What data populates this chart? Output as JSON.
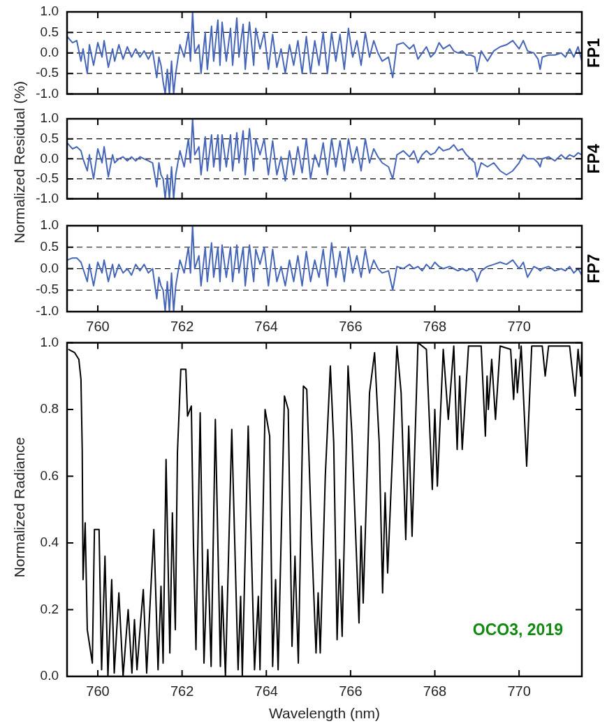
{
  "chart_data": [
    {
      "type": "line",
      "annotations": [
        "FP1"
      ],
      "xlim": [
        759.27,
        771.49
      ],
      "ylim": [
        -1,
        1
      ],
      "xticks": [
        760,
        762,
        764,
        766,
        768,
        770
      ],
      "yticks": [
        {
          "value": -1,
          "label": "-1.0"
        },
        {
          "value": -0.5,
          "label": "-0.5"
        },
        {
          "value": 0,
          "label": "0.0"
        },
        {
          "value": 0.5,
          "label": "0.5"
        },
        {
          "value": 1,
          "label": "1.0"
        }
      ],
      "tick_labels": "y",
      "ref_lines": [
        {
          "axis": "y",
          "value": 0.5,
          "color": "#000000",
          "line_style": "dashed"
        },
        {
          "axis": "y",
          "value": 0,
          "color": "#000000",
          "line_style": "dashed"
        },
        {
          "axis": "y",
          "value": -0.5,
          "color": "#000000",
          "line_style": "dashed"
        }
      ],
      "x": [
        759.27,
        759.4,
        759.5,
        759.6,
        759.65,
        759.75,
        759.8,
        759.9,
        760.0,
        760.1,
        760.15,
        760.25,
        760.35,
        760.4,
        760.5,
        760.6,
        760.7,
        760.8,
        760.9,
        761.0,
        761.1,
        761.2,
        761.3,
        761.4,
        761.45,
        761.5,
        761.55,
        761.6,
        761.65,
        761.7,
        761.75,
        761.8,
        761.85,
        761.95,
        762.05,
        762.15,
        762.2,
        762.25,
        762.3,
        762.4,
        762.45,
        762.55,
        762.6,
        762.7,
        762.75,
        762.85,
        762.9,
        762.95,
        763.05,
        763.15,
        763.2,
        763.3,
        763.35,
        763.45,
        763.5,
        763.6,
        763.7,
        763.75,
        763.85,
        763.95,
        764.05,
        764.15,
        764.25,
        764.35,
        764.45,
        764.55,
        764.65,
        764.75,
        764.85,
        764.95,
        765.05,
        765.15,
        765.25,
        765.35,
        765.45,
        765.55,
        765.65,
        765.75,
        765.85,
        765.95,
        766.05,
        766.15,
        766.25,
        766.35,
        766.45,
        766.55,
        766.65,
        766.75,
        766.9,
        767.0,
        767.1,
        767.25,
        767.4,
        767.5,
        767.6,
        767.7,
        767.8,
        767.9,
        768.0,
        768.1,
        768.2,
        768.35,
        768.45,
        768.55,
        768.65,
        768.75,
        768.85,
        768.95,
        769.0,
        769.1,
        769.25,
        769.4,
        769.55,
        769.7,
        769.85,
        770.0,
        770.1,
        770.2,
        770.35,
        770.45,
        770.5,
        770.55,
        770.7,
        770.85,
        771.0,
        771.1,
        771.2,
        771.3,
        771.4,
        771.49
      ],
      "series": [
        {
          "color": "#4565b8",
          "values": [
            0.4,
            0.25,
            0.3,
            -0.2,
            0.1,
            -0.5,
            0.2,
            -0.3,
            0.25,
            -0.1,
            0.3,
            -0.35,
            0.1,
            -0.2,
            0.2,
            -0.15,
            0.15,
            -0.1,
            0.1,
            -0.1,
            0.05,
            -0.15,
            0.05,
            -0.6,
            -0.1,
            -0.3,
            -0.7,
            -1.0,
            -0.4,
            -1.0,
            -0.2,
            -1.0,
            -0.5,
            0.2,
            -0.1,
            0.5,
            -0.2,
            1.0,
            0.0,
            0.2,
            -0.5,
            0.5,
            -0.4,
            0.65,
            -0.2,
            0.8,
            -0.3,
            0.75,
            -0.2,
            0.6,
            -0.3,
            0.85,
            -0.1,
            0.7,
            -0.4,
            0.75,
            -0.3,
            0.6,
            0.1,
            0.5,
            -0.4,
            0.45,
            -0.35,
            0.1,
            -0.5,
            0.2,
            -0.3,
            0.3,
            -0.5,
            0.4,
            -0.5,
            0.3,
            -0.3,
            0.5,
            -0.5,
            0.5,
            -0.2,
            0.45,
            -0.4,
            0.6,
            -0.1,
            0.3,
            -0.3,
            0.5,
            -0.1,
            0.3,
            0.0,
            -0.2,
            -0.1,
            -0.6,
            0.2,
            0.25,
            0.1,
            0.2,
            -0.15,
            0.0,
            0.15,
            -0.1,
            0.0,
            0.25,
            0.1,
            0.2,
            0.05,
            0.0,
            0.05,
            -0.05,
            -0.05,
            -0.1,
            -0.45,
            0.05,
            -0.2,
            0.05,
            0.15,
            0.2,
            0.3,
            0.1,
            0.3,
            0.05,
            0.0,
            -0.15,
            -0.4,
            -0.1,
            -0.05,
            -0.05,
            0.0,
            -0.1,
            0.1,
            -0.1,
            0.15,
            -0.2
          ]
        }
      ]
    },
    {
      "type": "line",
      "annotations": [
        "FP4"
      ],
      "ylabel": "Normalized Residual (%)",
      "xlim": [
        759.27,
        771.49
      ],
      "ylim": [
        -1,
        1
      ],
      "xticks": [
        760,
        762,
        764,
        766,
        768,
        770
      ],
      "yticks": [
        {
          "value": -1,
          "label": "-1.0"
        },
        {
          "value": -0.5,
          "label": "-0.5"
        },
        {
          "value": 0,
          "label": "0.0"
        },
        {
          "value": 0.5,
          "label": "0.5"
        },
        {
          "value": 1,
          "label": "1.0"
        }
      ],
      "tick_labels": "y",
      "ref_lines": [
        {
          "axis": "y",
          "value": 0.5,
          "color": "#000000",
          "line_style": "dashed"
        },
        {
          "axis": "y",
          "value": 0,
          "color": "#000000",
          "line_style": "dashed"
        },
        {
          "axis": "y",
          "value": -0.5,
          "color": "#000000",
          "line_style": "dashed"
        }
      ],
      "x": [
        759.27,
        759.4,
        759.5,
        759.6,
        759.65,
        759.75,
        759.8,
        759.9,
        760.0,
        760.1,
        760.15,
        760.25,
        760.35,
        760.4,
        760.5,
        760.6,
        760.7,
        760.8,
        760.9,
        761.0,
        761.1,
        761.2,
        761.3,
        761.4,
        761.45,
        761.5,
        761.55,
        761.6,
        761.65,
        761.7,
        761.75,
        761.8,
        761.85,
        761.95,
        762.05,
        762.15,
        762.2,
        762.25,
        762.3,
        762.4,
        762.45,
        762.55,
        762.6,
        762.7,
        762.75,
        762.85,
        762.9,
        762.95,
        763.05,
        763.15,
        763.2,
        763.3,
        763.35,
        763.45,
        763.5,
        763.6,
        763.7,
        763.75,
        763.85,
        763.95,
        764.05,
        764.15,
        764.25,
        764.35,
        764.45,
        764.55,
        764.65,
        764.75,
        764.85,
        764.95,
        765.05,
        765.15,
        765.25,
        765.35,
        765.45,
        765.55,
        765.65,
        765.75,
        765.85,
        765.95,
        766.05,
        766.15,
        766.25,
        766.35,
        766.45,
        766.55,
        766.65,
        766.75,
        766.9,
        767.0,
        767.1,
        767.25,
        767.4,
        767.5,
        767.6,
        767.7,
        767.8,
        767.9,
        768.0,
        768.1,
        768.2,
        768.35,
        768.45,
        768.55,
        768.65,
        768.75,
        768.85,
        768.95,
        769.0,
        769.1,
        769.25,
        769.4,
        769.55,
        769.7,
        769.85,
        770.0,
        770.1,
        770.2,
        770.35,
        770.45,
        770.5,
        770.55,
        770.7,
        770.85,
        771.0,
        771.1,
        771.2,
        771.3,
        771.4,
        771.49
      ],
      "series": [
        {
          "color": "#4565b8",
          "values": [
            0.4,
            0.25,
            0.3,
            0.2,
            0.0,
            -0.3,
            0.1,
            -0.5,
            0.25,
            -0.1,
            0.3,
            -0.45,
            0.1,
            -0.1,
            0.0,
            0.05,
            -0.05,
            0.05,
            -0.05,
            0.05,
            0.0,
            -0.05,
            -0.1,
            -0.7,
            -0.1,
            -0.4,
            -0.5,
            -1.0,
            -0.4,
            -1.0,
            -0.2,
            -1.0,
            -0.4,
            0.2,
            -0.2,
            0.5,
            -0.1,
            1.0,
            0.1,
            0.3,
            -0.4,
            0.55,
            -0.3,
            0.6,
            -0.2,
            0.6,
            -0.3,
            0.6,
            -0.2,
            0.6,
            -0.3,
            0.65,
            -0.1,
            0.7,
            -0.4,
            0.75,
            -0.3,
            0.5,
            0.1,
            0.5,
            -0.4,
            0.45,
            -0.4,
            0.05,
            -0.55,
            0.2,
            -0.4,
            0.3,
            -0.35,
            0.5,
            -0.5,
            0.1,
            -0.2,
            0.4,
            -0.4,
            0.5,
            -0.2,
            0.45,
            -0.3,
            0.5,
            -0.1,
            0.3,
            -0.3,
            0.5,
            -0.1,
            0.25,
            0.05,
            -0.1,
            -0.2,
            -0.5,
            0.1,
            0.2,
            0.05,
            0.2,
            -0.1,
            0.1,
            0.2,
            0.1,
            0.15,
            0.3,
            0.2,
            0.25,
            0.35,
            0.2,
            0.25,
            0.1,
            0.0,
            -0.1,
            -0.45,
            -0.1,
            -0.2,
            -0.1,
            -0.3,
            -0.4,
            -0.3,
            -0.1,
            0.1,
            0.0,
            0.0,
            -0.1,
            -0.2,
            0.0,
            0.05,
            -0.05,
            0.1,
            0.0,
            0.1,
            0.05,
            0.15,
            0.1
          ]
        }
      ]
    },
    {
      "type": "line",
      "annotations": [
        "FP7"
      ],
      "xlim": [
        759.27,
        771.49
      ],
      "ylim": [
        -1,
        1
      ],
      "xticks": [
        760,
        762,
        764,
        766,
        768,
        770
      ],
      "yticks": [
        {
          "value": -1,
          "label": "-1.0"
        },
        {
          "value": -0.5,
          "label": "-0.5"
        },
        {
          "value": 0,
          "label": "0.0"
        },
        {
          "value": 0.5,
          "label": "0.5"
        },
        {
          "value": 1,
          "label": "1.0"
        }
      ],
      "ref_lines": [
        {
          "axis": "y",
          "value": 0.5,
          "color": "#000000",
          "line_style": "dashed"
        },
        {
          "axis": "y",
          "value": 0,
          "color": "#000000",
          "line_style": "dashed"
        },
        {
          "axis": "y",
          "value": -0.5,
          "color": "#000000",
          "line_style": "dashed"
        }
      ],
      "x": [
        759.27,
        759.4,
        759.5,
        759.6,
        759.65,
        759.75,
        759.8,
        759.9,
        760.0,
        760.1,
        760.15,
        760.25,
        760.35,
        760.4,
        760.5,
        760.6,
        760.7,
        760.8,
        760.9,
        761.0,
        761.1,
        761.2,
        761.3,
        761.4,
        761.45,
        761.5,
        761.55,
        761.6,
        761.65,
        761.7,
        761.75,
        761.8,
        761.85,
        761.95,
        762.05,
        762.15,
        762.2,
        762.25,
        762.3,
        762.4,
        762.45,
        762.55,
        762.6,
        762.7,
        762.75,
        762.85,
        762.9,
        762.95,
        763.05,
        763.15,
        763.2,
        763.3,
        763.35,
        763.45,
        763.5,
        763.6,
        763.7,
        763.75,
        763.85,
        763.95,
        764.05,
        764.15,
        764.25,
        764.35,
        764.45,
        764.55,
        764.65,
        764.75,
        764.85,
        764.95,
        765.05,
        765.15,
        765.25,
        765.35,
        765.45,
        765.55,
        765.65,
        765.75,
        765.85,
        765.95,
        766.05,
        766.15,
        766.25,
        766.35,
        766.45,
        766.55,
        766.65,
        766.75,
        766.9,
        767.0,
        767.1,
        767.25,
        767.4,
        767.5,
        767.6,
        767.7,
        767.8,
        767.9,
        768.0,
        768.1,
        768.2,
        768.35,
        768.45,
        768.55,
        768.65,
        768.75,
        768.85,
        768.95,
        769.0,
        769.1,
        769.25,
        769.4,
        769.55,
        769.7,
        769.85,
        770.0,
        770.1,
        770.2,
        770.35,
        770.45,
        770.5,
        770.55,
        770.7,
        770.85,
        771.0,
        771.1,
        771.2,
        771.3,
        771.4,
        771.49
      ],
      "series": [
        {
          "color": "#4565b8",
          "values": [
            0.2,
            0.25,
            0.25,
            0.15,
            0.0,
            -0.3,
            0.1,
            -0.4,
            0.15,
            -0.1,
            0.2,
            -0.3,
            0.1,
            -0.2,
            0.1,
            -0.1,
            0.0,
            -0.15,
            0.1,
            -0.05,
            0.1,
            -0.1,
            0.0,
            -0.7,
            -0.2,
            -0.4,
            -0.5,
            -1.0,
            -0.3,
            -1.0,
            -0.1,
            -1.0,
            -0.4,
            0.2,
            -0.1,
            0.5,
            -0.1,
            1.0,
            0.0,
            0.3,
            -0.4,
            0.5,
            -0.3,
            0.6,
            -0.2,
            0.5,
            -0.3,
            0.55,
            -0.2,
            0.5,
            -0.3,
            0.55,
            -0.1,
            0.5,
            -0.4,
            0.55,
            -0.3,
            0.45,
            0.1,
            0.5,
            -0.4,
            0.45,
            -0.3,
            0.05,
            -0.4,
            0.2,
            -0.3,
            0.3,
            -0.4,
            0.4,
            -0.3,
            0.2,
            -0.2,
            0.45,
            -0.4,
            0.6,
            -0.2,
            0.4,
            -0.3,
            0.5,
            -0.1,
            0.3,
            -0.2,
            0.45,
            -0.1,
            0.2,
            0.0,
            -0.1,
            -0.05,
            -0.5,
            0.05,
            0.0,
            0.1,
            0.0,
            0.05,
            -0.05,
            0.1,
            0.0,
            0.15,
            0.05,
            0.0,
            0.05,
            0.0,
            -0.05,
            0.0,
            -0.05,
            0.0,
            -0.1,
            -0.3,
            -0.05,
            0.05,
            0.1,
            0.15,
            0.1,
            0.2,
            0.0,
            0.15,
            -0.2,
            0.05,
            0.0,
            -0.05,
            0.0,
            0.05,
            -0.05,
            0.0,
            -0.05,
            0.05,
            -0.1,
            0.0,
            -0.15
          ]
        }
      ]
    },
    {
      "type": "line",
      "xlabel": "Wavelength (nm)",
      "ylabel": "Normalized Radiance",
      "annotations": [
        "OCO3, 2019"
      ],
      "xlim": [
        759.27,
        771.49
      ],
      "ylim": [
        0,
        1
      ],
      "xticks": [
        760,
        762,
        764,
        766,
        768,
        770
      ],
      "yticks": [
        {
          "value": 0,
          "label": "0.0"
        },
        {
          "value": 0.2,
          "label": "0.2"
        },
        {
          "value": 0.4,
          "label": "0.4"
        },
        {
          "value": 0.6,
          "label": "0.6"
        },
        {
          "value": 0.8,
          "label": "0.8"
        },
        {
          "value": 1,
          "label": "1.0"
        }
      ],
      "x": [
        759.3,
        759.45,
        759.55,
        759.6,
        759.63,
        759.65,
        759.7,
        759.75,
        759.87,
        759.92,
        760.03,
        760.09,
        760.17,
        760.24,
        760.33,
        760.39,
        760.5,
        760.6,
        760.72,
        760.81,
        760.87,
        760.93,
        761.02,
        761.08,
        761.16,
        761.23,
        761.33,
        761.43,
        761.5,
        761.55,
        761.62,
        761.71,
        761.77,
        761.84,
        761.89,
        761.97,
        762.09,
        762.13,
        762.22,
        762.27,
        762.33,
        762.43,
        762.52,
        762.61,
        762.69,
        762.79,
        762.91,
        762.95,
        763.03,
        763.18,
        763.33,
        763.39,
        763.43,
        763.57,
        763.72,
        763.81,
        763.85,
        763.97,
        764.08,
        764.15,
        764.22,
        764.28,
        764.43,
        764.52,
        764.61,
        764.68,
        764.76,
        764.88,
        764.96,
        765.08,
        765.18,
        765.23,
        765.28,
        765.4,
        765.52,
        765.6,
        765.68,
        765.74,
        765.8,
        765.94,
        766.03,
        766.2,
        766.25,
        766.3,
        766.45,
        766.57,
        766.68,
        766.76,
        766.82,
        766.88,
        767.1,
        767.2,
        767.31,
        767.38,
        767.46,
        767.6,
        767.8,
        767.94,
        768.0,
        768.06,
        768.2,
        768.32,
        768.45,
        768.53,
        768.59,
        768.65,
        768.8,
        769.1,
        769.2,
        769.24,
        769.27,
        769.35,
        769.44,
        769.55,
        769.8,
        769.87,
        769.92,
        769.96,
        770.05,
        770.18,
        770.3,
        770.55,
        770.62,
        770.7,
        771.2,
        771.33,
        771.4,
        771.46,
        771.49
      ],
      "series": [
        {
          "color": "#000000",
          "values": [
            0.98,
            0.97,
            0.95,
            0.89,
            0.68,
            0.29,
            0.46,
            0.14,
            0.04,
            0.44,
            0.44,
            0.02,
            0.36,
            0.0,
            0.29,
            0.01,
            0.25,
            0.0,
            0.2,
            0.01,
            0.17,
            0.02,
            0.17,
            0.26,
            0.01,
            0.19,
            0.44,
            0.02,
            0.27,
            0.04,
            0.65,
            0.07,
            0.49,
            0.14,
            0.67,
            0.92,
            0.92,
            0.78,
            0.81,
            0.4,
            0.08,
            0.79,
            0.04,
            0.38,
            0.03,
            0.77,
            0.03,
            0.27,
            0.0,
            0.74,
            0.02,
            0.24,
            0.0,
            0.75,
            0.02,
            0.24,
            0.02,
            0.8,
            0.72,
            0.03,
            0.29,
            0.02,
            0.84,
            0.8,
            0.09,
            0.36,
            0.04,
            0.87,
            0.86,
            0.4,
            0.07,
            0.25,
            0.07,
            0.6,
            0.93,
            0.7,
            0.11,
            0.35,
            0.12,
            0.93,
            0.73,
            0.16,
            0.45,
            0.22,
            0.85,
            0.97,
            0.7,
            0.25,
            0.55,
            0.31,
            0.99,
            0.85,
            0.41,
            0.75,
            0.42,
            1.0,
            0.98,
            0.56,
            0.8,
            0.57,
            0.98,
            0.77,
            0.99,
            0.68,
            0.9,
            0.68,
            0.99,
            0.99,
            0.72,
            0.9,
            0.8,
            0.95,
            0.77,
            0.99,
            0.98,
            0.83,
            0.95,
            0.85,
            0.99,
            0.63,
            0.99,
            0.99,
            0.9,
            0.99,
            0.99,
            0.84,
            0.98,
            0.9,
            0.97
          ]
        }
      ]
    }
  ]
}
